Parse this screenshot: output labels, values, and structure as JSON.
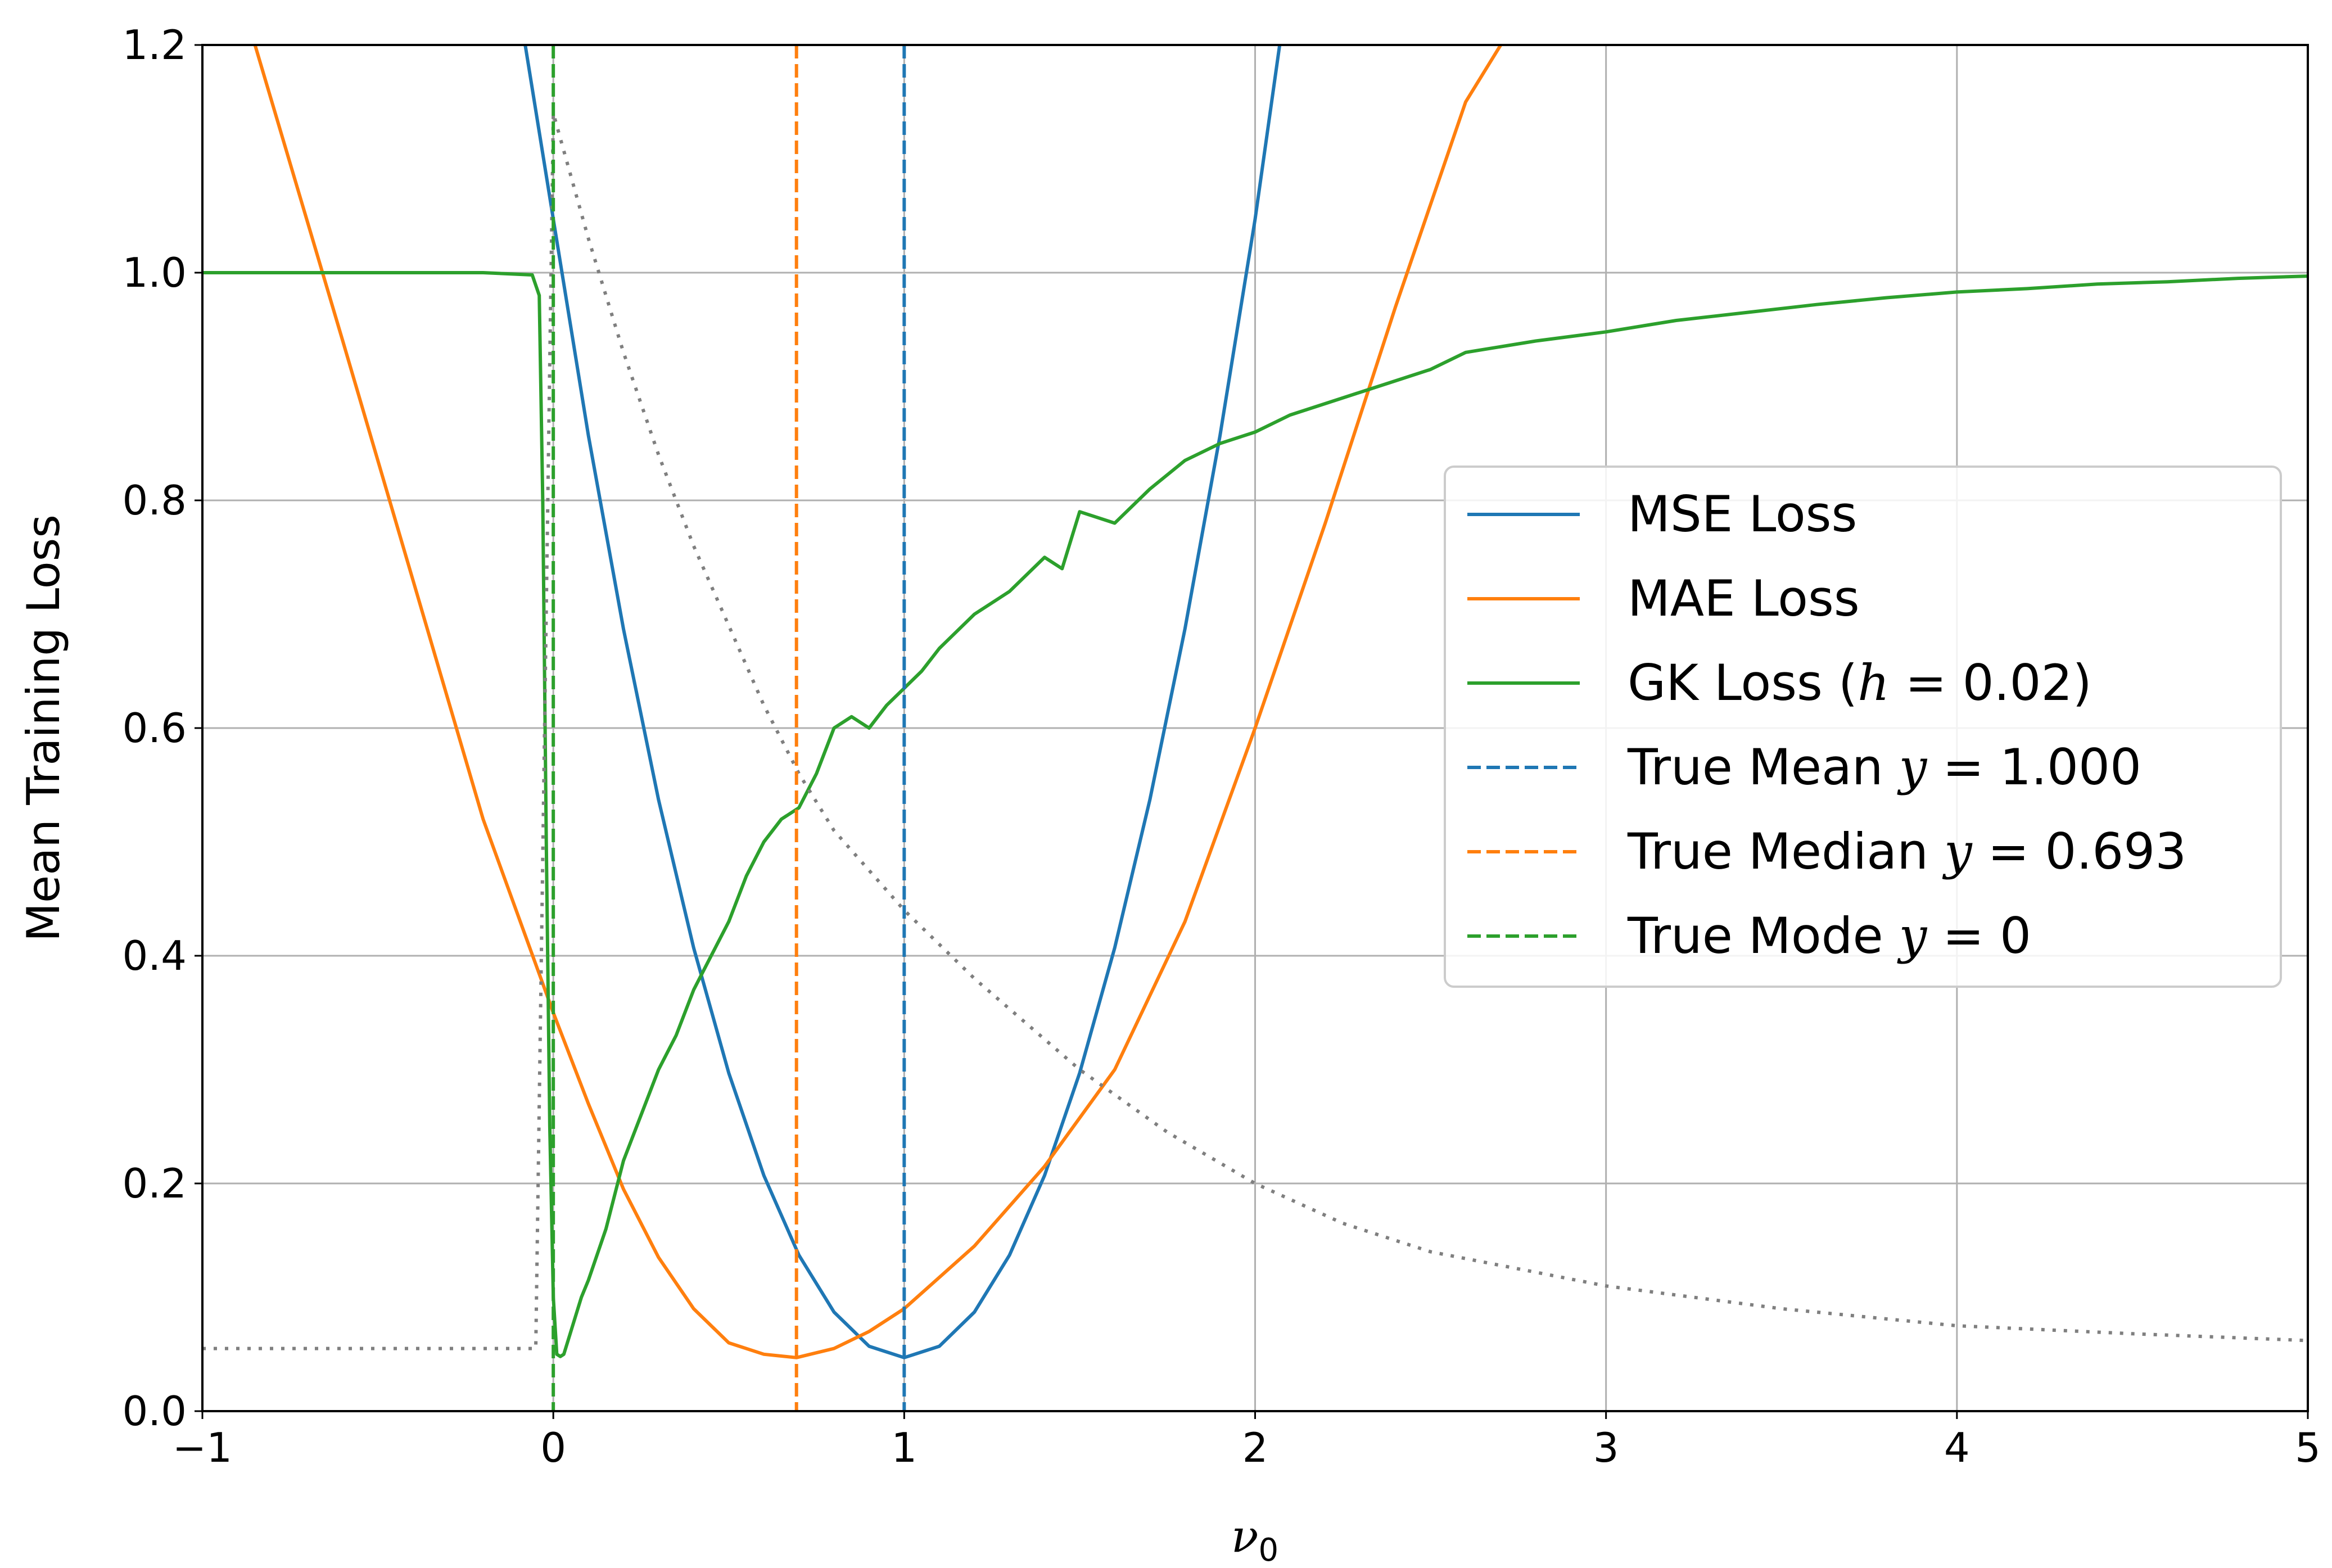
{
  "chart_data": {
    "type": "line",
    "title": "",
    "xlabel": "ν",
    "xlabel_subscript": "0",
    "ylabel": "Mean Training Loss",
    "xlim": [
      -1,
      5
    ],
    "ylim": [
      0,
      1.2
    ],
    "xticks": [
      -1,
      0,
      1,
      2,
      3,
      4,
      5
    ],
    "xtick_labels": [
      "−1",
      "0",
      "1",
      "2",
      "3",
      "4",
      "5"
    ],
    "yticks": [
      0.0,
      0.2,
      0.4,
      0.6,
      0.8,
      1.0,
      1.2
    ],
    "ytick_labels": [
      "0.0",
      "0.2",
      "0.4",
      "0.6",
      "0.8",
      "1.0",
      "1.2"
    ],
    "grid": true,
    "legend_position": "center-right",
    "series": [
      {
        "name": "MSE Loss",
        "color": "#1f77b4",
        "style": "solid",
        "x": [
          -0.08,
          0.0,
          0.1,
          0.2,
          0.3,
          0.4,
          0.5,
          0.6,
          0.7,
          0.8,
          0.9,
          1.0,
          1.1,
          1.2,
          1.3,
          1.4,
          1.5,
          1.6,
          1.7,
          1.8,
          1.9,
          2.0,
          2.07
        ],
        "y": [
          1.2,
          1.047,
          0.857,
          0.687,
          0.537,
          0.407,
          0.297,
          0.207,
          0.137,
          0.087,
          0.057,
          0.047,
          0.057,
          0.087,
          0.137,
          0.207,
          0.297,
          0.407,
          0.537,
          0.687,
          0.857,
          1.047,
          1.2
        ]
      },
      {
        "name": "MAE Loss",
        "color": "#ff7f0e",
        "style": "solid",
        "x": [
          -0.85,
          -0.6,
          -0.4,
          -0.2,
          0.0,
          0.1,
          0.2,
          0.3,
          0.4,
          0.5,
          0.6,
          0.693,
          0.8,
          0.9,
          1.0,
          1.2,
          1.4,
          1.6,
          1.8,
          2.0,
          2.2,
          2.4,
          2.6,
          2.7
        ],
        "y": [
          1.2,
          0.94,
          0.73,
          0.52,
          0.35,
          0.27,
          0.195,
          0.135,
          0.09,
          0.06,
          0.05,
          0.047,
          0.055,
          0.07,
          0.09,
          0.145,
          0.215,
          0.3,
          0.43,
          0.6,
          0.78,
          0.97,
          1.15,
          1.2
        ]
      },
      {
        "name": "GK Loss (h = 0.02)",
        "color": "#2ca02c",
        "style": "solid",
        "x": [
          -1.0,
          -0.2,
          -0.06,
          -0.04,
          -0.03,
          -0.02,
          -0.01,
          0.0,
          0.01,
          0.02,
          0.03,
          0.05,
          0.08,
          0.1,
          0.15,
          0.2,
          0.25,
          0.3,
          0.35,
          0.4,
          0.45,
          0.5,
          0.55,
          0.6,
          0.65,
          0.7,
          0.75,
          0.8,
          0.85,
          0.9,
          0.95,
          1.0,
          1.05,
          1.1,
          1.2,
          1.3,
          1.4,
          1.45,
          1.5,
          1.6,
          1.7,
          1.8,
          1.9,
          2.0,
          2.1,
          2.2,
          2.3,
          2.4,
          2.5,
          2.6,
          2.8,
          3.0,
          3.2,
          3.4,
          3.6,
          3.8,
          4.0,
          4.2,
          4.4,
          4.6,
          4.8,
          5.0
        ],
        "y": [
          1.0,
          1.0,
          0.998,
          0.98,
          0.8,
          0.5,
          0.25,
          0.1,
          0.05,
          0.048,
          0.05,
          0.07,
          0.1,
          0.115,
          0.16,
          0.22,
          0.26,
          0.3,
          0.33,
          0.37,
          0.4,
          0.43,
          0.47,
          0.5,
          0.52,
          0.53,
          0.56,
          0.6,
          0.61,
          0.6,
          0.62,
          0.635,
          0.65,
          0.67,
          0.7,
          0.72,
          0.75,
          0.74,
          0.79,
          0.78,
          0.81,
          0.835,
          0.85,
          0.86,
          0.875,
          0.885,
          0.895,
          0.905,
          0.915,
          0.93,
          0.94,
          0.948,
          0.958,
          0.965,
          0.972,
          0.978,
          0.983,
          0.986,
          0.99,
          0.992,
          0.995,
          0.997
        ]
      },
      {
        "name": "",
        "color": "#7f7f7f",
        "style": "dotted",
        "x": [
          -1.0,
          -0.05,
          0.0,
          0.1,
          0.2,
          0.3,
          0.4,
          0.5,
          0.6,
          0.7,
          0.8,
          1.0,
          1.2,
          1.5,
          1.75,
          2.0,
          2.25,
          2.5,
          3.0,
          3.5,
          4.0,
          4.5,
          5.0
        ],
        "y": [
          0.055,
          0.055,
          1.14,
          1.03,
          0.93,
          0.84,
          0.76,
          0.69,
          0.62,
          0.56,
          0.51,
          0.44,
          0.38,
          0.3,
          0.245,
          0.2,
          0.165,
          0.14,
          0.11,
          0.09,
          0.075,
          0.068,
          0.062
        ]
      }
    ],
    "vlines": [
      {
        "name": "True Mean y = 1.000",
        "x": 1.0,
        "color": "#1f77b4",
        "style": "dashed"
      },
      {
        "name": "True Median y = 0.693",
        "x": 0.693,
        "color": "#ff7f0e",
        "style": "dashed"
      },
      {
        "name": "True Mode y = 0",
        "x": 0.0,
        "color": "#2ca02c",
        "style": "dashed"
      }
    ]
  },
  "legend": [
    {
      "key": "mse",
      "color": "#1f77b4",
      "style": "solid",
      "parts": [
        {
          "t": "MSE Loss"
        }
      ]
    },
    {
      "key": "mae",
      "color": "#ff7f0e",
      "style": "solid",
      "parts": [
        {
          "t": "MAE Loss"
        }
      ]
    },
    {
      "key": "gk",
      "color": "#2ca02c",
      "style": "solid",
      "parts": [
        {
          "t": "GK Loss ("
        },
        {
          "t": "h",
          "m": true
        },
        {
          "t": " = 0.02)"
        }
      ]
    },
    {
      "key": "true-mean",
      "color": "#1f77b4",
      "style": "dashed",
      "parts": [
        {
          "t": "True Mean "
        },
        {
          "t": "y",
          "m": true
        },
        {
          "t": " = 1.000"
        }
      ]
    },
    {
      "key": "true-median",
      "color": "#ff7f0e",
      "style": "dashed",
      "parts": [
        {
          "t": "True Median "
        },
        {
          "t": "y",
          "m": true
        },
        {
          "t": " = 0.693"
        }
      ]
    },
    {
      "key": "true-mode",
      "color": "#2ca02c",
      "style": "dashed",
      "parts": [
        {
          "t": "True Mode "
        },
        {
          "t": "y",
          "m": true
        },
        {
          "t": " = 0"
        }
      ]
    }
  ]
}
